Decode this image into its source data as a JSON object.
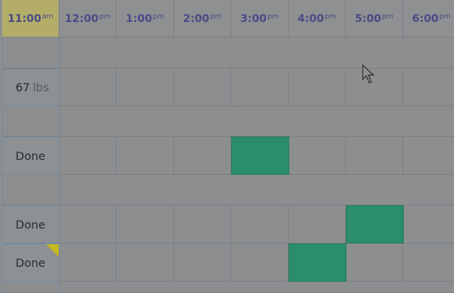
{
  "header": {
    "columns": [
      {
        "time": "11:00",
        "period": "am"
      },
      {
        "time": "12:00",
        "period": "pm"
      },
      {
        "time": "1:00",
        "period": "pm"
      },
      {
        "time": "2:00",
        "period": "pm"
      },
      {
        "time": "3:00",
        "period": "pm"
      },
      {
        "time": "4:00",
        "period": "pm"
      },
      {
        "time": "5:00",
        "period": "pm"
      },
      {
        "time": "6:00",
        "period": "pm"
      }
    ]
  },
  "rows": [
    {
      "value": "67",
      "unit": "lbs"
    },
    {
      "label": "Done"
    },
    {
      "label": "Done"
    },
    {
      "label": "Done"
    }
  ]
}
